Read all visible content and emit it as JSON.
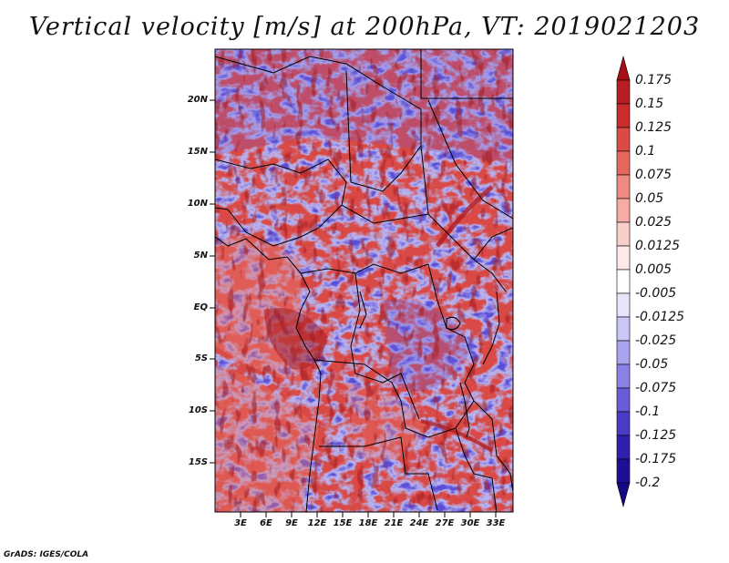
{
  "title": "Vertical velocity [m/s] at 200hPa, VT: 2019021203",
  "credit": "GrADS: IGES/COLA",
  "map": {
    "variable": "Vertical velocity",
    "units": "m/s",
    "level": "200hPa",
    "valid_time": "2019021203",
    "lon_range": [
      0,
      35
    ],
    "lat_range": [
      -20,
      24
    ],
    "lat_ticks": [
      "20N",
      "15N",
      "10N",
      "5N",
      "EQ",
      "5S",
      "10S",
      "15S"
    ],
    "lon_ticks": [
      "3E",
      "6E",
      "9E",
      "12E",
      "15E",
      "18E",
      "21E",
      "24E",
      "27E",
      "30E",
      "33E"
    ]
  },
  "colorbar": {
    "labels": [
      "0.175",
      "0.15",
      "0.125",
      "0.1",
      "0.075",
      "0.05",
      "0.025",
      "0.0125",
      "0.005",
      "-0.005",
      "-0.0125",
      "-0.025",
      "-0.05",
      "-0.075",
      "-0.1",
      "-0.125",
      "-0.175",
      "-0.2"
    ],
    "colors": [
      "#a50f15",
      "#b81d23",
      "#cb2d2d",
      "#dc4a44",
      "#e6675e",
      "#ee8a80",
      "#f4aca4",
      "#f9cdc8",
      "#fde9e7",
      "#ffffff",
      "#e6e4fb",
      "#cac6f5",
      "#aaa3ee",
      "#8a80e5",
      "#6a5cd9",
      "#4b3cc8",
      "#3020b0",
      "#1f0f96",
      "#160884"
    ]
  }
}
